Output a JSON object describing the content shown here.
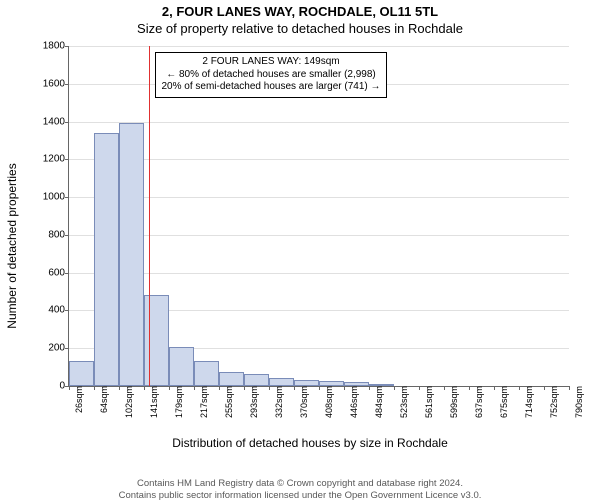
{
  "title_line1": "2, FOUR LANES WAY, ROCHDALE, OL11 5TL",
  "title_line2": "Size of property relative to detached houses in Rochdale",
  "ylabel": "Number of detached properties",
  "xlabel": "Distribution of detached houses by size in Rochdale",
  "chart": {
    "type": "histogram",
    "background_color": "#ffffff",
    "grid_color": "#e0e0e0",
    "axis_color": "#666666",
    "bar_fill": "#ced8ec",
    "bar_border": "#7a8cb8",
    "reference_line_color": "#e03030",
    "annot_border": "#000000",
    "ylim": [
      0,
      1800
    ],
    "ytick_step": 200,
    "xtick_step": 38.3,
    "x_ticks": [
      "26sqm",
      "64sqm",
      "102sqm",
      "141sqm",
      "179sqm",
      "217sqm",
      "255sqm",
      "293sqm",
      "332sqm",
      "370sqm",
      "408sqm",
      "446sqm",
      "484sqm",
      "523sqm",
      "561sqm",
      "599sqm",
      "637sqm",
      "675sqm",
      "714sqm",
      "752sqm",
      "790sqm"
    ],
    "bars": [
      130,
      1340,
      1395,
      480,
      205,
      130,
      75,
      62,
      45,
      30,
      28,
      20,
      10,
      0,
      0,
      0,
      0,
      0,
      0,
      0
    ],
    "reference_x_value": 149,
    "x_min": 26,
    "x_max": 790
  },
  "annot": {
    "line1": "2 FOUR LANES WAY: 149sqm",
    "line2": "← 80% of detached houses are smaller (2,998)",
    "line3": "20% of semi-detached houses are larger (741) →"
  },
  "footer_line1": "Contains HM Land Registry data © Crown copyright and database right 2024.",
  "footer_line2": "Contains public sector information licensed under the Open Government Licence v3.0."
}
